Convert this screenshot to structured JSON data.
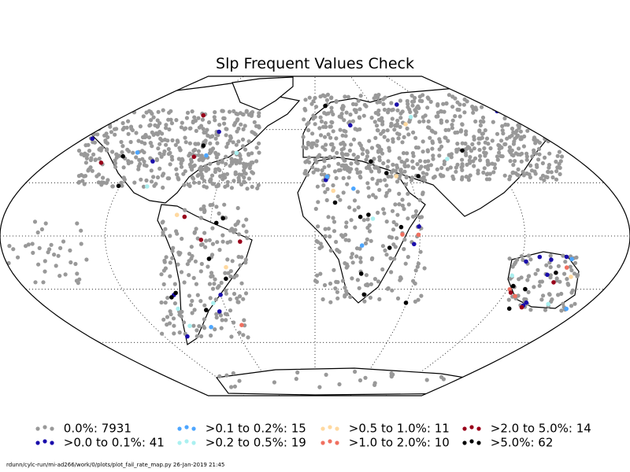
{
  "title": "Slp Frequent Values Check",
  "footer": "rdunn/cylc-run/mi-ad266/work/0/plots/plot_fail_rate_map.py   26-Jan-2019 21:45",
  "map": {
    "projection": "Robinson",
    "land_fill": "#ffffff",
    "coast_color": "#000000",
    "graticule_style": "dotted"
  },
  "legend": [
    {
      "label": "0.0%: 7931",
      "color": "#999999"
    },
    {
      "label": ">0.0 to 0.1%: 41",
      "color": "#1a0dab"
    },
    {
      "label": ">0.1 to 0.2%: 15",
      "color": "#4da6ff"
    },
    {
      "label": ">0.2 to 0.5%: 19",
      "color": "#aaf0f0"
    },
    {
      "label": ">0.5 to 1.0%: 11",
      "color": "#ffd9a0"
    },
    {
      "label": ">1.0 to 2.0%: 10",
      "color": "#f07060"
    },
    {
      "label": ">2.0 to 5.0%: 14",
      "color": "#99001a"
    },
    {
      "label": ">5.0%: 62",
      "color": "#000000"
    }
  ]
}
